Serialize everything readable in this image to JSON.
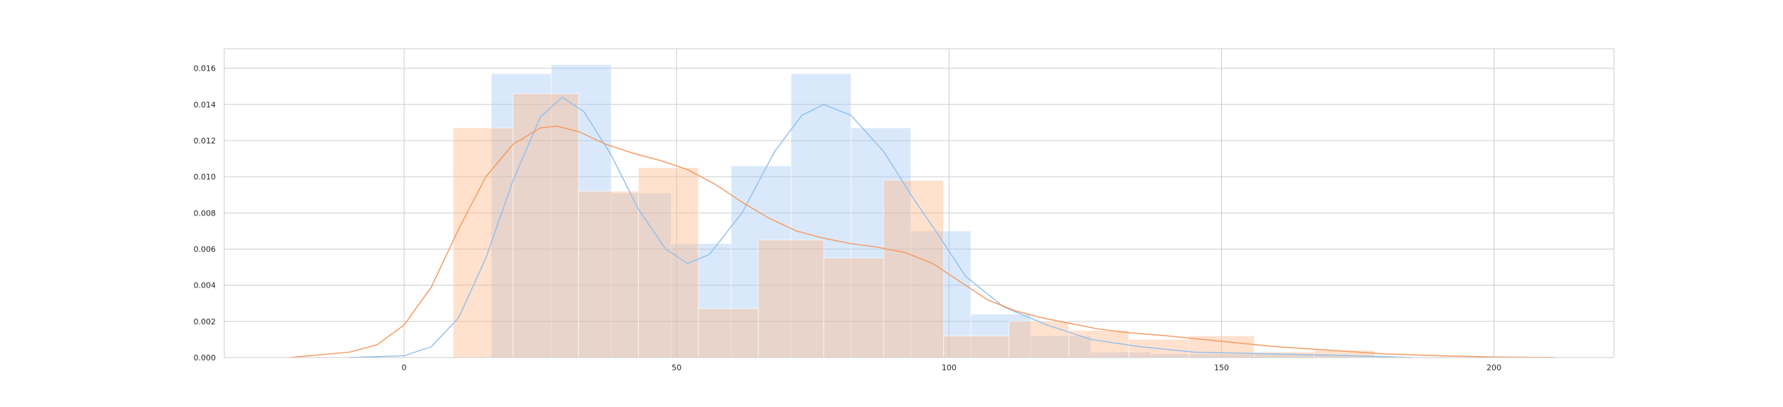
{
  "chart_data": {
    "type": "histogram",
    "xlim": [
      -33,
      222
    ],
    "ylim": [
      0,
      0.01708
    ],
    "grid": true,
    "x_ticks": [
      "0",
      "50",
      "100",
      "150",
      "200"
    ],
    "y_ticks": [
      "0.000",
      "0.002",
      "0.004",
      "0.006",
      "0.008",
      "0.010",
      "0.012",
      "0.014",
      "0.016"
    ],
    "series": [
      {
        "color": "#a1c9f4",
        "bins": [
          {
            "x0": 16,
            "x1": 27,
            "value": 0.0157
          },
          {
            "x0": 27,
            "x1": 38,
            "value": 0.0162
          },
          {
            "x0": 38,
            "x1": 49,
            "value": 0.0091
          },
          {
            "x0": 49,
            "x1": 60,
            "value": 0.0063
          },
          {
            "x0": 60,
            "x1": 71,
            "value": 0.0106
          },
          {
            "x0": 71,
            "x1": 82,
            "value": 0.0157
          },
          {
            "x0": 82,
            "x1": 93,
            "value": 0.0127
          },
          {
            "x0": 93,
            "x1": 104,
            "value": 0.007
          },
          {
            "x0": 104,
            "x1": 115,
            "value": 0.0024
          },
          {
            "x0": 115,
            "x1": 126,
            "value": 0.0012
          },
          {
            "x0": 126,
            "x1": 137,
            "value": 0.0003
          },
          {
            "x0": 137,
            "x1": 148,
            "value": 0.0002
          },
          {
            "x0": 148,
            "x1": 159,
            "value": 0.0002
          },
          {
            "x0": 159,
            "x1": 170,
            "value": 0.0002
          },
          {
            "x0": 170,
            "x1": 181,
            "value": 0.0001
          }
        ],
        "kde": [
          [
            -10,
            0.0
          ],
          [
            0,
            0.0001
          ],
          [
            5,
            0.0006
          ],
          [
            10,
            0.0022
          ],
          [
            15,
            0.0055
          ],
          [
            20,
            0.0098
          ],
          [
            25,
            0.0133
          ],
          [
            29,
            0.0144
          ],
          [
            33,
            0.0136
          ],
          [
            38,
            0.0112
          ],
          [
            43,
            0.0082
          ],
          [
            48,
            0.006
          ],
          [
            52,
            0.0052
          ],
          [
            56,
            0.0057
          ],
          [
            62,
            0.008
          ],
          [
            68,
            0.0114
          ],
          [
            73,
            0.0134
          ],
          [
            77,
            0.014
          ],
          [
            82,
            0.0134
          ],
          [
            88,
            0.0114
          ],
          [
            93,
            0.009
          ],
          [
            98,
            0.0068
          ],
          [
            103,
            0.0045
          ],
          [
            110,
            0.0028
          ],
          [
            118,
            0.0018
          ],
          [
            126,
            0.001
          ],
          [
            135,
            0.0006
          ],
          [
            145,
            0.0003
          ],
          [
            160,
            0.0002
          ],
          [
            175,
            0.0001
          ],
          [
            185,
            0.0
          ]
        ]
      },
      {
        "color": "#ffb482",
        "bins": [
          {
            "x0": 9,
            "x1": 20,
            "value": 0.0127
          },
          {
            "x0": 20,
            "x1": 32,
            "value": 0.0146
          },
          {
            "x0": 32,
            "x1": 43,
            "value": 0.0092
          },
          {
            "x0": 43,
            "x1": 54,
            "value": 0.0105
          },
          {
            "x0": 54,
            "x1": 65,
            "value": 0.0027
          },
          {
            "x0": 65,
            "x1": 77,
            "value": 0.0065
          },
          {
            "x0": 77,
            "x1": 88,
            "value": 0.0055
          },
          {
            "x0": 88,
            "x1": 99,
            "value": 0.0098
          },
          {
            "x0": 99,
            "x1": 111,
            "value": 0.0012
          },
          {
            "x0": 111,
            "x1": 122,
            "value": 0.002
          },
          {
            "x0": 122,
            "x1": 133,
            "value": 0.0015
          },
          {
            "x0": 133,
            "x1": 144,
            "value": 0.001
          },
          {
            "x0": 144,
            "x1": 156,
            "value": 0.0012
          },
          {
            "x0": 156,
            "x1": 167,
            "value": 0.0003
          },
          {
            "x0": 167,
            "x1": 178,
            "value": 0.0004
          }
        ],
        "kde": [
          [
            -21,
            0.0
          ],
          [
            -10,
            0.0003
          ],
          [
            -5,
            0.0007
          ],
          [
            0,
            0.0018
          ],
          [
            5,
            0.0039
          ],
          [
            10,
            0.0071
          ],
          [
            15,
            0.01
          ],
          [
            20,
            0.0118
          ],
          [
            25,
            0.0127
          ],
          [
            28,
            0.0128
          ],
          [
            32,
            0.0125
          ],
          [
            37,
            0.0118
          ],
          [
            42,
            0.0113
          ],
          [
            47,
            0.0109
          ],
          [
            52,
            0.0104
          ],
          [
            57,
            0.0096
          ],
          [
            62,
            0.0086
          ],
          [
            67,
            0.0077
          ],
          [
            72,
            0.007
          ],
          [
            77,
            0.0066
          ],
          [
            82,
            0.0063
          ],
          [
            87,
            0.0061
          ],
          [
            92,
            0.0058
          ],
          [
            97,
            0.0052
          ],
          [
            102,
            0.0042
          ],
          [
            107,
            0.0032
          ],
          [
            112,
            0.0026
          ],
          [
            117,
            0.0022
          ],
          [
            122,
            0.0019
          ],
          [
            127,
            0.0016
          ],
          [
            132,
            0.0014
          ],
          [
            140,
            0.0012
          ],
          [
            150,
            0.0009
          ],
          [
            160,
            0.0006
          ],
          [
            170,
            0.0004
          ],
          [
            180,
            0.0002
          ],
          [
            190,
            0.0001
          ],
          [
            200,
            3e-05
          ],
          [
            211,
            0.0
          ]
        ]
      }
    ]
  }
}
